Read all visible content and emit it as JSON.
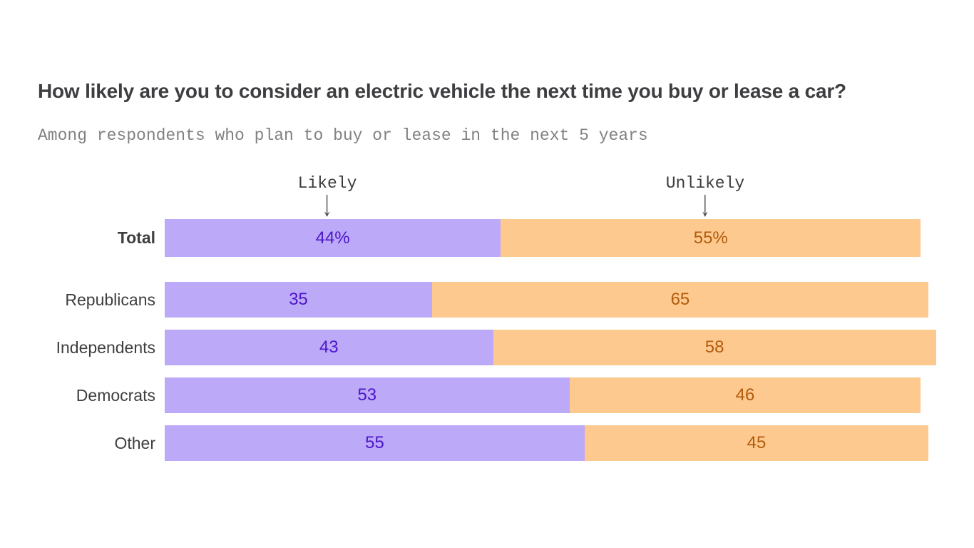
{
  "title": "How likely are you to consider an electric vehicle the next time you buy or lease a car?",
  "subtitle": "Among respondents who plan to buy or lease in the next 5 years",
  "colors": {
    "title_text": "#3e3e41",
    "subtitle_text": "#818184",
    "row_label_text": "#3e3e41",
    "annotation_text": "#3b3b3e",
    "arrow": "#4a4a4a",
    "likely_bar": "#bca9f7",
    "likely_value_text": "#4c16c9",
    "unlikely_bar": "#fec98f",
    "unlikely_value_text": "#b15c0d",
    "background": "#ffffff"
  },
  "chart_data": {
    "type": "bar",
    "orientation": "horizontal",
    "stacked": true,
    "grid": false,
    "legend_position": "annotations-above-first-bar",
    "title": "How likely are you to consider an electric vehicle the next time you buy or lease a car?",
    "subtitle": "Among respondents who plan to buy or lease in the next 5 years",
    "categories": [
      "Total",
      "Republicans",
      "Independents",
      "Democrats",
      "Other"
    ],
    "series": [
      {
        "name": "Likely",
        "values": [
          44,
          35,
          43,
          53,
          55
        ],
        "labels": [
          "44%",
          "35",
          "43",
          "53",
          "55"
        ],
        "color": "#bca9f7",
        "label_color": "#4c16c9"
      },
      {
        "name": "Unlikely",
        "values": [
          55,
          65,
          58,
          46,
          45
        ],
        "labels": [
          "55%",
          "65",
          "58",
          "46",
          "45"
        ],
        "color": "#fec98f",
        "label_color": "#b15c0d"
      }
    ],
    "value_unit": "percent",
    "xlim": [
      0,
      101
    ]
  }
}
